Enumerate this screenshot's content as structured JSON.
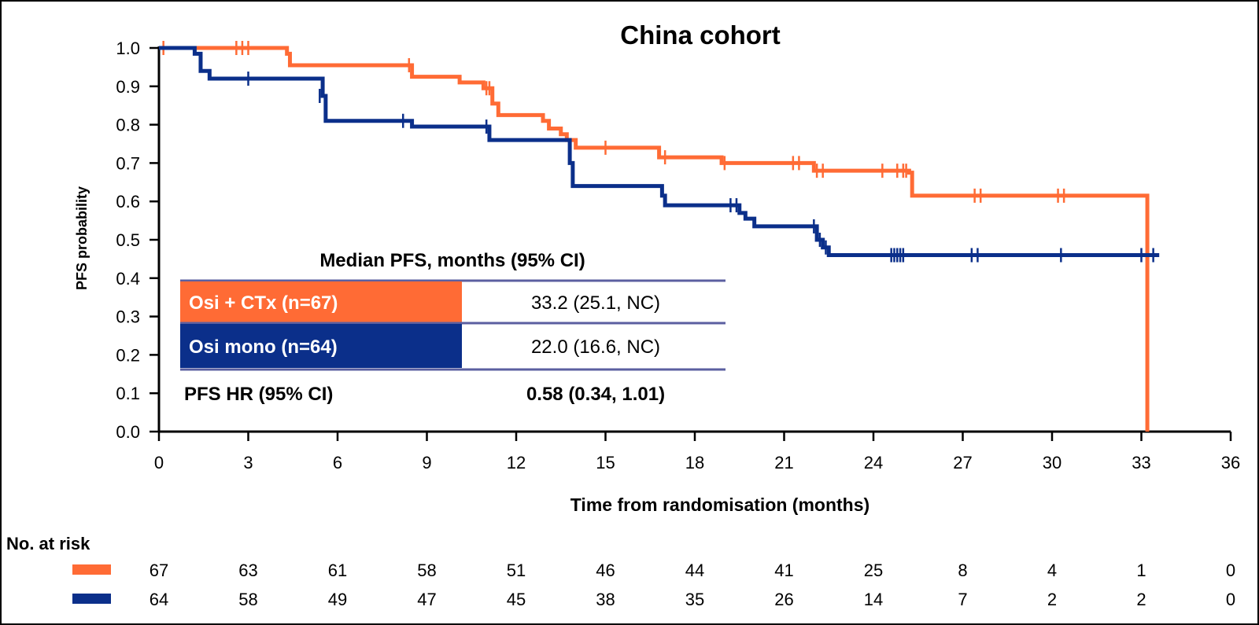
{
  "colors": {
    "osi_ctx": "#FF6B35",
    "osi_mono": "#0B2F8A",
    "axis": "#000000",
    "table_rule": "#5B5FA0"
  },
  "chart_data": {
    "type": "line",
    "subtype": "kaplan-meier step",
    "title": "China cohort",
    "xlabel": "Time from randomisation (months)",
    "ylabel": "PFS probability",
    "xlim": [
      0,
      36
    ],
    "ylim": [
      0,
      1
    ],
    "x_ticks": [
      "0",
      "3",
      "6",
      "9",
      "12",
      "15",
      "18",
      "21",
      "24",
      "27",
      "30",
      "33",
      "36"
    ],
    "y_ticks": [
      "0.0",
      "0.1",
      "0.2",
      "0.3",
      "0.4",
      "0.5",
      "0.6",
      "0.7",
      "0.8",
      "0.9",
      "1.0"
    ],
    "series": [
      {
        "name": "Osi + CTx (n=67)",
        "color_key": "osi_ctx",
        "steps": [
          [
            0,
            1.0
          ],
          [
            4.3,
            0.985
          ],
          [
            4.4,
            0.955
          ],
          [
            8.4,
            0.955
          ],
          [
            8.5,
            0.925
          ],
          [
            10.1,
            0.91
          ],
          [
            10.9,
            0.895
          ],
          [
            11.2,
            0.855
          ],
          [
            11.4,
            0.825
          ],
          [
            12.9,
            0.81
          ],
          [
            13.1,
            0.79
          ],
          [
            13.5,
            0.775
          ],
          [
            13.7,
            0.76
          ],
          [
            14.0,
            0.74
          ],
          [
            16.7,
            0.74
          ],
          [
            16.8,
            0.715
          ],
          [
            18.9,
            0.7
          ],
          [
            21.8,
            0.7
          ],
          [
            22.0,
            0.68
          ],
          [
            25.2,
            0.675
          ],
          [
            25.3,
            0.615
          ],
          [
            33.2,
            0.615
          ],
          [
            33.2,
            0.0
          ]
        ],
        "censor_x": [
          0.15,
          2.6,
          2.8,
          3.0,
          8.4,
          11.0,
          11.1,
          15.0,
          17.0,
          19.0,
          21.3,
          21.5,
          22.1,
          22.3,
          24.3,
          24.8,
          25.0,
          25.1,
          27.4,
          27.6,
          30.2,
          30.4
        ]
      },
      {
        "name": "Osi mono (n=64)",
        "color_key": "osi_mono",
        "steps": [
          [
            0,
            1.0
          ],
          [
            1.2,
            0.985
          ],
          [
            1.4,
            0.94
          ],
          [
            1.7,
            0.92
          ],
          [
            5.4,
            0.92
          ],
          [
            5.5,
            0.875
          ],
          [
            5.6,
            0.81
          ],
          [
            8.4,
            0.81
          ],
          [
            8.5,
            0.795
          ],
          [
            10.9,
            0.795
          ],
          [
            11.1,
            0.76
          ],
          [
            13.7,
            0.76
          ],
          [
            13.8,
            0.7
          ],
          [
            13.9,
            0.64
          ],
          [
            16.7,
            0.64
          ],
          [
            16.9,
            0.615
          ],
          [
            17.0,
            0.59
          ],
          [
            19.5,
            0.57
          ],
          [
            19.7,
            0.555
          ],
          [
            20.0,
            0.535
          ],
          [
            22.0,
            0.535
          ],
          [
            22.1,
            0.5
          ],
          [
            22.3,
            0.48
          ],
          [
            22.5,
            0.46
          ],
          [
            33.6,
            0.46
          ]
        ],
        "censor_x": [
          3.0,
          5.4,
          8.2,
          11.0,
          19.2,
          19.4,
          22.0,
          22.2,
          22.4,
          24.6,
          24.7,
          24.8,
          24.9,
          25.0,
          27.3,
          27.5,
          30.3,
          33.0,
          33.4
        ],
        "censor_y_override": [
          [
            5.4,
            0.875
          ],
          [
            19.2,
            0.59
          ],
          [
            19.4,
            0.59
          ],
          [
            22.0,
            0.535
          ],
          [
            22.2,
            0.5
          ],
          [
            22.4,
            0.48
          ]
        ]
      }
    ]
  },
  "summary": {
    "header": "Median PFS, months (95% CI)",
    "rows": [
      {
        "label": "Osi + CTx (n=67)",
        "value": "33.2 (25.1, NC)",
        "color_key": "osi_ctx"
      },
      {
        "label": "Osi mono (n=64)",
        "value": "22.0 (16.6, NC)",
        "color_key": "osi_mono"
      }
    ],
    "hr_label": "PFS HR (95% CI)",
    "hr_value": "0.58 (0.34, 1.01)"
  },
  "risk_table": {
    "title": "No. at risk",
    "rows": [
      {
        "color_key": "osi_ctx",
        "values": [
          "67",
          "63",
          "61",
          "58",
          "51",
          "46",
          "44",
          "41",
          "25",
          "8",
          "4",
          "1",
          "0"
        ]
      },
      {
        "color_key": "osi_mono",
        "values": [
          "64",
          "58",
          "49",
          "47",
          "45",
          "38",
          "35",
          "26",
          "14",
          "7",
          "2",
          "2",
          "0"
        ]
      }
    ]
  }
}
